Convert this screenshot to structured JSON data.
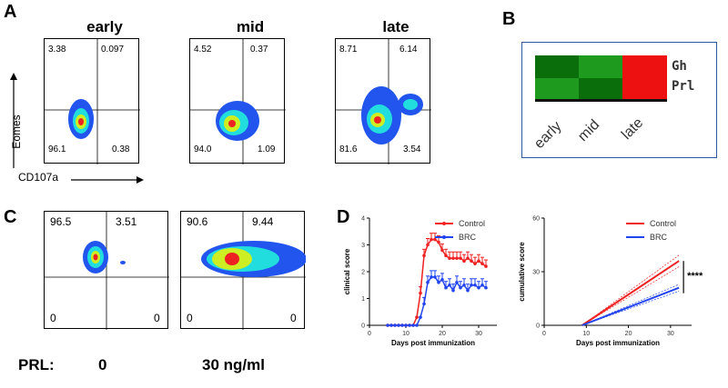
{
  "panels": {
    "A": {
      "letter": "A",
      "columns": [
        "early",
        "mid",
        "late"
      ],
      "y_axis": "Eomes",
      "x_axis": "CD107a",
      "plots": [
        {
          "ul": "3.38",
          "ur": "0.097",
          "ll": "96.1",
          "lr": "0.38"
        },
        {
          "ul": "4.52",
          "ur": "0.37",
          "ll": "94.0",
          "lr": "1.09"
        },
        {
          "ul": "8.71",
          "ur": "6.14",
          "ll": "81.6",
          "lr": "3.54"
        }
      ]
    },
    "B": {
      "letter": "B",
      "genes": [
        "Gh",
        "Prl"
      ],
      "conditions": [
        "early",
        "mid",
        "late"
      ],
      "colors": {
        "dark_green": "#0a6e0a",
        "green": "#1e9a1e",
        "red": "#ee1111"
      }
    },
    "C": {
      "letter": "C",
      "prl_label": "PRL:",
      "conditions": [
        "0",
        "30 ng/ml"
      ],
      "plots": [
        {
          "ul": "96.5",
          "ur": "3.51",
          "ll": "0",
          "lr": "0"
        },
        {
          "ul": "90.6",
          "ur": "9.44",
          "ll": "0",
          "lr": "0"
        }
      ]
    },
    "D": {
      "letter": "D",
      "significance": "****"
    }
  },
  "chart_data": [
    {
      "type": "line",
      "xlabel": "Days post immunization",
      "ylabel": "clinical score",
      "xlim": [
        0,
        35
      ],
      "ylim": [
        0,
        4
      ],
      "xticks": [
        "0",
        "10",
        "20",
        "30"
      ],
      "yticks": [
        "0",
        "1",
        "2",
        "3",
        "4"
      ],
      "legend": "top-right",
      "series": [
        {
          "name": "Control",
          "color": "#ee2222",
          "x": [
            5,
            6,
            7,
            8,
            9,
            10,
            11,
            12,
            13,
            14,
            15,
            16,
            17,
            18,
            19,
            20,
            21,
            22,
            23,
            24,
            25,
            26,
            27,
            28,
            29,
            30,
            31,
            32
          ],
          "y": [
            0,
            0,
            0,
            0,
            0,
            0,
            0,
            0,
            0.3,
            1.2,
            2.6,
            3.0,
            3.2,
            3.2,
            3.1,
            2.8,
            2.6,
            2.5,
            2.5,
            2.5,
            2.5,
            2.4,
            2.5,
            2.4,
            2.3,
            2.4,
            2.3,
            2.2
          ]
        },
        {
          "name": "BRC",
          "color": "#2244ee",
          "x": [
            5,
            6,
            7,
            8,
            9,
            10,
            11,
            12,
            13,
            14,
            15,
            16,
            17,
            18,
            19,
            20,
            21,
            22,
            23,
            24,
            25,
            26,
            27,
            28,
            29,
            30,
            31,
            32
          ],
          "y": [
            0,
            0,
            0,
            0,
            0,
            0,
            0,
            0,
            0,
            0.3,
            0.8,
            1.6,
            1.8,
            1.8,
            1.6,
            1.7,
            1.4,
            1.5,
            1.3,
            1.6,
            1.4,
            1.5,
            1.3,
            1.5,
            1.5,
            1.4,
            1.5,
            1.4
          ]
        }
      ]
    },
    {
      "type": "line",
      "xlabel": "Days post immunization",
      "ylabel": "cumulative score",
      "xlim": [
        0,
        35
      ],
      "ylim": [
        0,
        60
      ],
      "xticks": [
        "0",
        "10",
        "20",
        "30"
      ],
      "yticks": [
        "0",
        "30",
        "60"
      ],
      "legend": "top-right",
      "series": [
        {
          "name": "Control",
          "color": "#ee2222",
          "x": [
            9,
            32
          ],
          "y": [
            0,
            36
          ]
        },
        {
          "name": "BRC",
          "color": "#2244ee",
          "x": [
            9,
            32
          ],
          "y": [
            0,
            21
          ]
        }
      ]
    }
  ]
}
